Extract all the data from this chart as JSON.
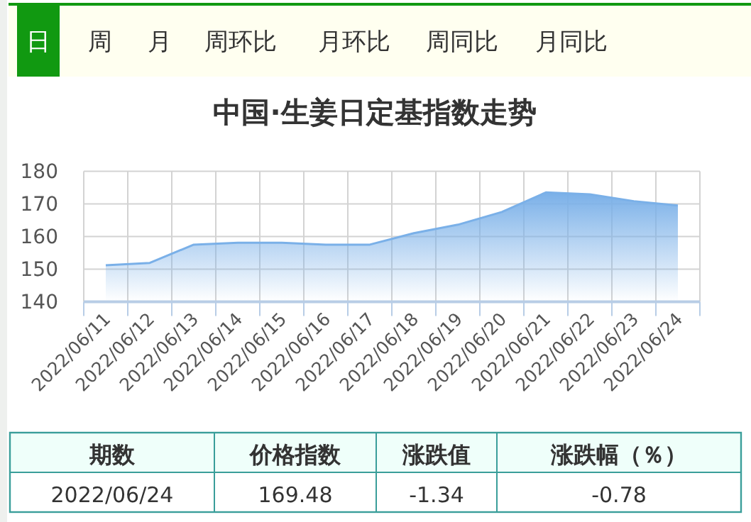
{
  "chart_data": [
    {
      "type": "other",
      "annotations": [
        "日",
        "周",
        "月",
        "周环比",
        "月环比",
        "周同比",
        "月同比"
      ]
    },
    {
      "type": "area",
      "title": "中国·生姜日定基指数走势",
      "categories": [
        "2022/06/11",
        "2022/06/12",
        "2022/06/13",
        "2022/06/14",
        "2022/06/15",
        "2022/06/16",
        "2022/06/17",
        "2022/06/18",
        "2022/06/19",
        "2022/06/20",
        "2022/06/21",
        "2022/06/22",
        "2022/06/23",
        "2022/06/24"
      ],
      "series": [
        {
          "color": "#7ab0e8",
          "values": [
            151.2,
            151.9,
            157.5,
            158.1,
            158.1,
            157.5,
            157.5,
            161.0,
            163.6,
            167.5,
            173.5,
            172.9,
            170.82,
            169.48
          ]
        }
      ],
      "ylim": [
        140,
        180
      ],
      "yticks": [
        140,
        150,
        160,
        170,
        180
      ],
      "grid": true
    },
    {
      "type": "other",
      "annotations": [
        "期数",
        "价格指数",
        "涨跌值",
        "涨跌幅（％）",
        "2022/06/24",
        "169.48",
        "-1.34",
        "-0.78"
      ]
    }
  ]
}
